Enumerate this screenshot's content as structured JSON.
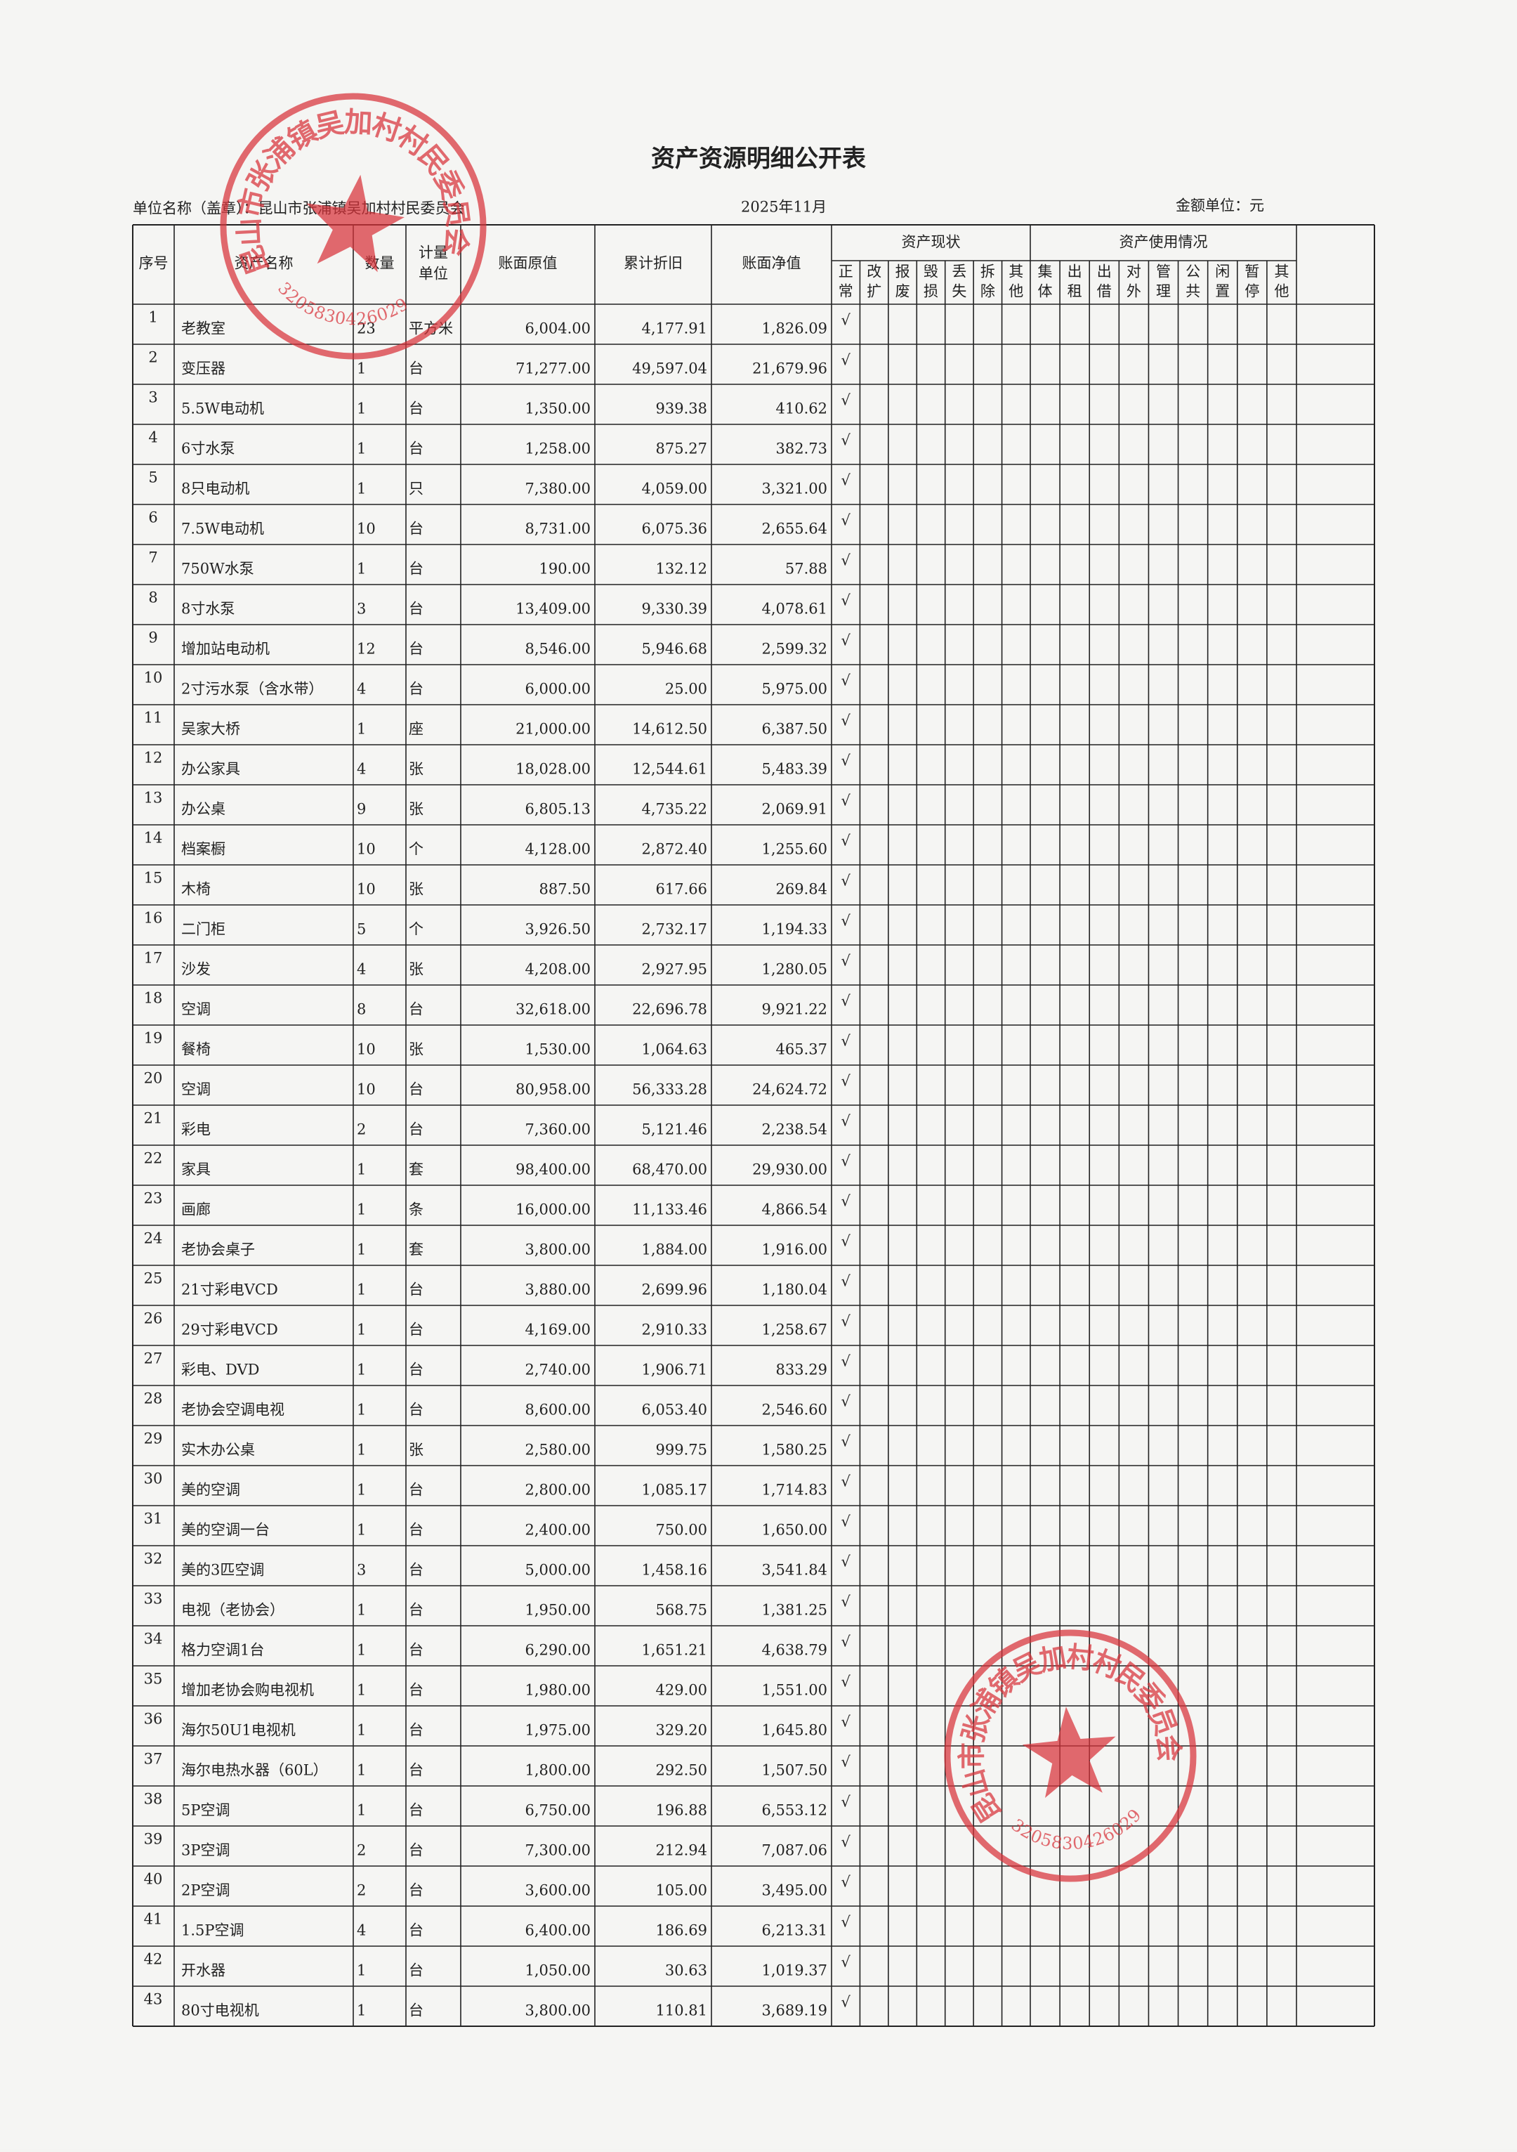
{
  "header": {
    "title": "资产资源明细公开表",
    "unit_name": "单位名称（盖章）：昆山市张浦镇吴加村村民委员会",
    "date": "2025年11月",
    "amount_unit": "金额单位：元"
  },
  "table": {
    "columns": [
      [
        "序号"
      ],
      [
        "资产名称"
      ],
      [
        "数量"
      ],
      [
        "计量",
        "单位"
      ],
      [
        "账面原值"
      ],
      [
        "累计折旧"
      ],
      [
        "账面净值"
      ]
    ],
    "status_group": "资产现状",
    "status_columns": [
      [
        "正",
        "常"
      ],
      [
        "改",
        "扩"
      ],
      [
        "报",
        "废"
      ],
      [
        "毁",
        "损"
      ],
      [
        "丢",
        "失"
      ],
      [
        "拆",
        "除"
      ],
      [
        "其",
        "他"
      ]
    ],
    "usage_group": "资产使用情况",
    "usage_columns": [
      [
        "集",
        "体"
      ],
      [
        "出",
        "租"
      ],
      [
        "出",
        "借"
      ],
      [
        "对",
        "外"
      ],
      [
        "管",
        "理"
      ],
      [
        "公",
        "共"
      ],
      [
        "闲",
        "置"
      ],
      [
        "暂",
        "停"
      ],
      [
        "其",
        "他"
      ]
    ],
    "rows": [
      [
        "1",
        "老教室",
        "23",
        "平方米",
        "6,004.00",
        "4,177.91",
        "1,826.09",
        "√"
      ],
      [
        "2",
        "变压器",
        "1",
        "台",
        "71,277.00",
        "49,597.04",
        "21,679.96",
        "√"
      ],
      [
        "3",
        "5.5W电动机",
        "1",
        "台",
        "1,350.00",
        "939.38",
        "410.62",
        "√"
      ],
      [
        "4",
        "6寸水泵",
        "1",
        "台",
        "1,258.00",
        "875.27",
        "382.73",
        "√"
      ],
      [
        "5",
        "8只电动机",
        "1",
        "只",
        "7,380.00",
        "4,059.00",
        "3,321.00",
        "√"
      ],
      [
        "6",
        "7.5W电动机",
        "10",
        "台",
        "8,731.00",
        "6,075.36",
        "2,655.64",
        "√"
      ],
      [
        "7",
        "750W水泵",
        "1",
        "台",
        "190.00",
        "132.12",
        "57.88",
        "√"
      ],
      [
        "8",
        "8寸水泵",
        "3",
        "台",
        "13,409.00",
        "9,330.39",
        "4,078.61",
        "√"
      ],
      [
        "9",
        "增加站电动机",
        "12",
        "台",
        "8,546.00",
        "5,946.68",
        "2,599.32",
        "√"
      ],
      [
        "10",
        "2寸污水泵（含水带）",
        "4",
        "台",
        "6,000.00",
        "25.00",
        "5,975.00",
        "√"
      ],
      [
        "11",
        "吴家大桥",
        "1",
        "座",
        "21,000.00",
        "14,612.50",
        "6,387.50",
        "√"
      ],
      [
        "12",
        "办公家具",
        "4",
        "张",
        "18,028.00",
        "12,544.61",
        "5,483.39",
        "√"
      ],
      [
        "13",
        "办公桌",
        "9",
        "张",
        "6,805.13",
        "4,735.22",
        "2,069.91",
        "√"
      ],
      [
        "14",
        "档案橱",
        "10",
        "个",
        "4,128.00",
        "2,872.40",
        "1,255.60",
        "√"
      ],
      [
        "15",
        "木椅",
        "10",
        "张",
        "887.50",
        "617.66",
        "269.84",
        "√"
      ],
      [
        "16",
        "二门柜",
        "5",
        "个",
        "3,926.50",
        "2,732.17",
        "1,194.33",
        "√"
      ],
      [
        "17",
        "沙发",
        "4",
        "张",
        "4,208.00",
        "2,927.95",
        "1,280.05",
        "√"
      ],
      [
        "18",
        "空调",
        "8",
        "台",
        "32,618.00",
        "22,696.78",
        "9,921.22",
        "√"
      ],
      [
        "19",
        "餐椅",
        "10",
        "张",
        "1,530.00",
        "1,064.63",
        "465.37",
        "√"
      ],
      [
        "20",
        "空调",
        "10",
        "台",
        "80,958.00",
        "56,333.28",
        "24,624.72",
        "√"
      ],
      [
        "21",
        "彩电",
        "2",
        "台",
        "7,360.00",
        "5,121.46",
        "2,238.54",
        "√"
      ],
      [
        "22",
        "家具",
        "1",
        "套",
        "98,400.00",
        "68,470.00",
        "29,930.00",
        "√"
      ],
      [
        "23",
        "画廊",
        "1",
        "条",
        "16,000.00",
        "11,133.46",
        "4,866.54",
        "√"
      ],
      [
        "24",
        "老协会桌子",
        "1",
        "套",
        "3,800.00",
        "1,884.00",
        "1,916.00",
        "√"
      ],
      [
        "25",
        "21寸彩电VCD",
        "1",
        "台",
        "3,880.00",
        "2,699.96",
        "1,180.04",
        "√"
      ],
      [
        "26",
        "29寸彩电VCD",
        "1",
        "台",
        "4,169.00",
        "2,910.33",
        "1,258.67",
        "√"
      ],
      [
        "27",
        "彩电、DVD",
        "1",
        "台",
        "2,740.00",
        "1,906.71",
        "833.29",
        "√"
      ],
      [
        "28",
        "老协会空调电视",
        "1",
        "台",
        "8,600.00",
        "6,053.40",
        "2,546.60",
        "√"
      ],
      [
        "29",
        "实木办公桌",
        "1",
        "张",
        "2,580.00",
        "999.75",
        "1,580.25",
        "√"
      ],
      [
        "30",
        "美的空调",
        "1",
        "台",
        "2,800.00",
        "1,085.17",
        "1,714.83",
        "√"
      ],
      [
        "31",
        "美的空调一台",
        "1",
        "台",
        "2,400.00",
        "750.00",
        "1,650.00",
        "√"
      ],
      [
        "32",
        "美的3匹空调",
        "3",
        "台",
        "5,000.00",
        "1,458.16",
        "3,541.84",
        "√"
      ],
      [
        "33",
        "电视（老协会）",
        "1",
        "台",
        "1,950.00",
        "568.75",
        "1,381.25",
        "√"
      ],
      [
        "34",
        "格力空调1台",
        "1",
        "台",
        "6,290.00",
        "1,651.21",
        "4,638.79",
        "√"
      ],
      [
        "35",
        "增加老协会购电视机",
        "1",
        "台",
        "1,980.00",
        "429.00",
        "1,551.00",
        "√"
      ],
      [
        "36",
        "海尔50U1电视机",
        "1",
        "台",
        "1,975.00",
        "329.20",
        "1,645.80",
        "√"
      ],
      [
        "37",
        "海尔电热水器（60L）",
        "1",
        "台",
        "1,800.00",
        "292.50",
        "1,507.50",
        "√"
      ],
      [
        "38",
        "5P空调",
        "1",
        "台",
        "6,750.00",
        "196.88",
        "6,553.12",
        "√"
      ],
      [
        "39",
        "3P空调",
        "2",
        "台",
        "7,300.00",
        "212.94",
        "7,087.06",
        "√"
      ],
      [
        "40",
        "2P空调",
        "2",
        "台",
        "3,600.00",
        "105.00",
        "3,495.00",
        "√"
      ],
      [
        "41",
        "1.5P空调",
        "4",
        "台",
        "6,400.00",
        "186.69",
        "6,213.31",
        "√"
      ],
      [
        "42",
        "开水器",
        "1",
        "台",
        "1,050.00",
        "30.63",
        "1,019.37",
        "√"
      ],
      [
        "43",
        "80寸电视机",
        "1",
        "台",
        "3,800.00",
        "110.81",
        "3,689.19",
        "√"
      ]
    ]
  },
  "stamps": [
    {
      "name": "昆山市张浦镇吴加村村民委员会",
      "code": "3205830426029"
    },
    {
      "name": "昆山市张浦镇吴加村村民委员会",
      "code": "3205830426029"
    }
  ]
}
